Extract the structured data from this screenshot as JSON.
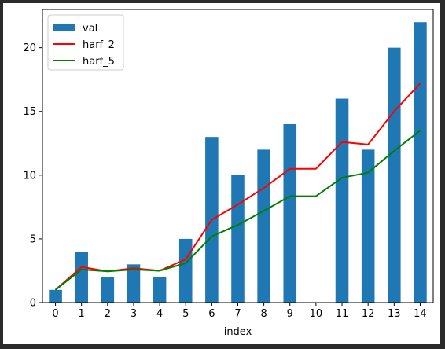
{
  "chart_data": {
    "type": "bar",
    "xlabel": "index",
    "ylabel": "",
    "title": "",
    "categories": [
      "0",
      "1",
      "2",
      "3",
      "4",
      "5",
      "6",
      "7",
      "8",
      "9",
      "10",
      "11",
      "12",
      "13",
      "14"
    ],
    "ylim": [
      0,
      23
    ],
    "yticks": [
      0,
      5,
      10,
      15,
      20
    ],
    "grid": false,
    "legend_placement": "top-left",
    "series": [
      {
        "name": "val",
        "kind": "bar",
        "color": "#1f77b4",
        "values": [
          1,
          4,
          2,
          3,
          2,
          5,
          13,
          10,
          12,
          14,
          0,
          16,
          12,
          20,
          22
        ]
      },
      {
        "name": "harf_2",
        "kind": "line",
        "color": "#ff0000",
        "values": [
          1,
          2.8,
          2.45,
          2.7,
          2.5,
          3.4,
          6.5,
          7.7,
          9.0,
          10.5,
          10.5,
          12.6,
          12.4,
          15.0,
          17.2
        ]
      },
      {
        "name": "harf_5",
        "kind": "line",
        "color": "#008000",
        "values": [
          1,
          2.6,
          2.45,
          2.6,
          2.5,
          3.1,
          5.2,
          6.1,
          7.2,
          8.35,
          8.35,
          9.8,
          10.2,
          11.9,
          13.5
        ]
      }
    ]
  }
}
